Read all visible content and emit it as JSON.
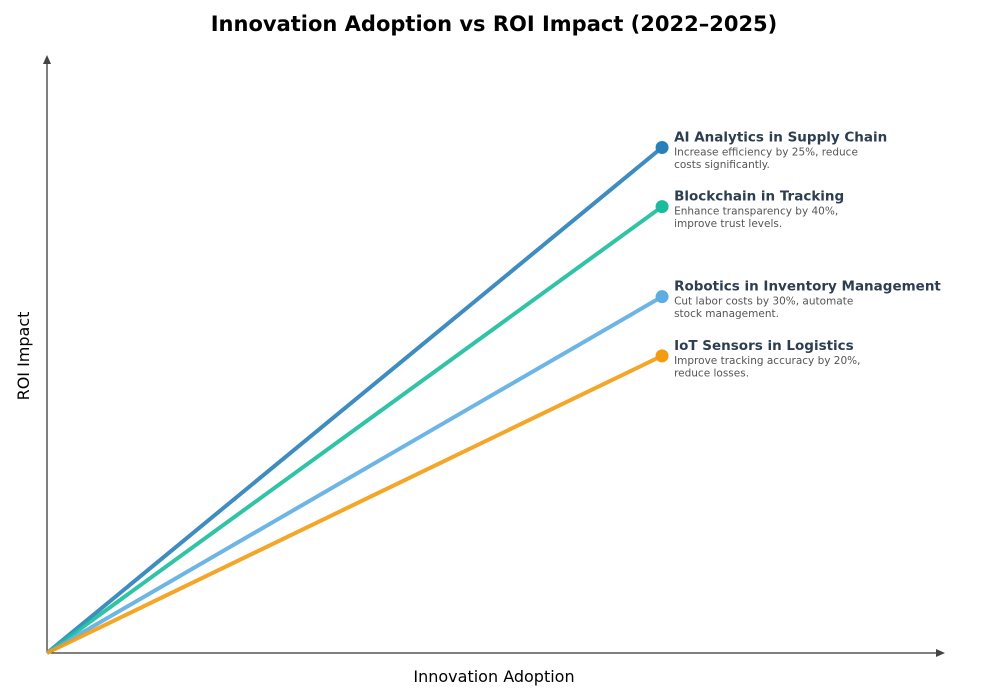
{
  "chart_data": {
    "type": "line",
    "title": "Innovation Adoption vs ROI Impact (2022–2025)",
    "xlabel": "Innovation Adoption",
    "ylabel": "ROI Impact",
    "xlim": [
      0,
      1.46
    ],
    "ylim": [
      0,
      0.97
    ],
    "grid": false,
    "series": [
      {
        "name": "AI Analytics in Supply Chain",
        "description": [
          "Increase efficiency by 25%, reduce",
          "costs significantly."
        ],
        "color": "#2980b9",
        "x": [
          0,
          1
        ],
        "y": [
          0,
          0.82
        ]
      },
      {
        "name": "Blockchain in Tracking",
        "description": [
          "Enhance transparency by 40%,",
          "improve trust levels."
        ],
        "color": "#1abc9c",
        "x": [
          0,
          1
        ],
        "y": [
          0,
          0.724
        ]
      },
      {
        "name": "Robotics in Inventory Management",
        "description": [
          "Cut labor costs by 30%, automate",
          "stock management."
        ],
        "color": "#5dade2",
        "x": [
          0,
          1
        ],
        "y": [
          0,
          0.578
        ]
      },
      {
        "name": "IoT Sensors in Logistics",
        "description": [
          "Improve tracking accuracy by 20%,",
          "reduce losses."
        ],
        "color": "#f39c12",
        "x": [
          0,
          1
        ],
        "y": [
          0,
          0.482
        ]
      }
    ]
  }
}
